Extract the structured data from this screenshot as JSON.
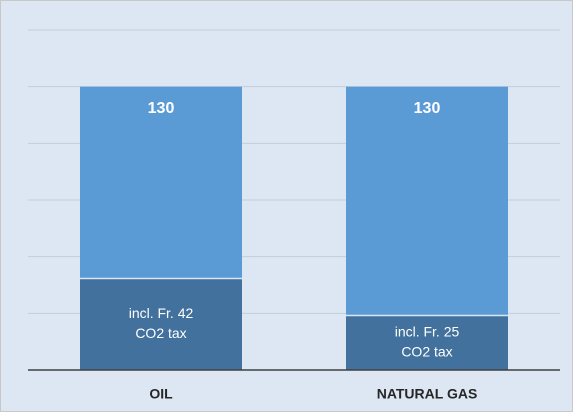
{
  "chart_data": {
    "type": "stacked_bar",
    "categories": [
      "OIL",
      "NATURAL GAS"
    ],
    "series": [
      {
        "color": "#41719c",
        "values": [
          42,
          25
        ],
        "value_labels": [
          [
            "incl. Fr. 42",
            "CO2 tax"
          ],
          [
            "incl. Fr. 25",
            "CO2 tax"
          ]
        ]
      },
      {
        "color": "#5b9bd5",
        "values": [
          88,
          105
        ]
      }
    ],
    "totals": [
      130,
      130
    ],
    "ylim": [
      0,
      156
    ],
    "yticks": [
      0,
      26,
      52,
      78,
      104,
      130,
      156
    ],
    "grid": true
  }
}
